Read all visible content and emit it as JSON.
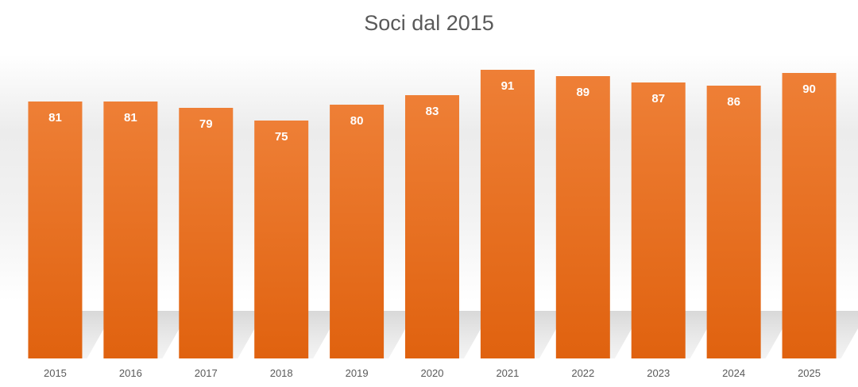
{
  "chart_data": {
    "type": "bar",
    "title": "Soci dal 2015",
    "categories": [
      "2015",
      "2016",
      "2017",
      "2018",
      "2019",
      "2020",
      "2021",
      "2022",
      "2023",
      "2024",
      "2025"
    ],
    "values": [
      81,
      81,
      79,
      75,
      80,
      83,
      91,
      89,
      87,
      86,
      90
    ],
    "data_labels": true,
    "xlabel": "",
    "ylabel": "",
    "grid": false,
    "legend": "none",
    "colors": {
      "bar_top": "#ee7f36",
      "bar_bottom": "#e0620f",
      "label": "#ffffff",
      "text": "#595959"
    }
  }
}
